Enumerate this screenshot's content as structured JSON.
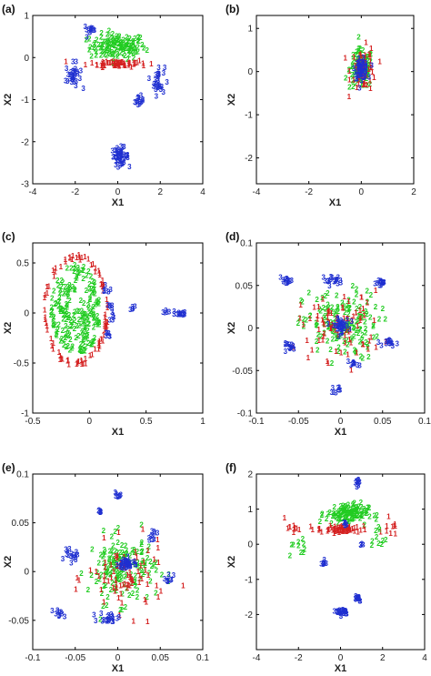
{
  "colors": {
    "1": "#d42020",
    "2": "#22cc22",
    "3": "#1f2fd0"
  },
  "chart_data": [
    {
      "type": "scatter",
      "panel_label": "(a)",
      "xlabel": "X1",
      "ylabel": "X2",
      "xlim": [
        -4,
        4
      ],
      "ylim": [
        -3,
        1
      ],
      "xticks": [
        "-4",
        "-2",
        "0",
        "2",
        "4"
      ],
      "yticks": [
        "-3",
        "-2",
        "-1",
        "0",
        "1"
      ],
      "clusters": [
        {
          "label": "2",
          "cx": 0.0,
          "cy": 0.2,
          "sx": 1.3,
          "sy": 0.3,
          "n": 130,
          "shape": "ellipse"
        },
        {
          "label": "1",
          "cx": 0.0,
          "cy": -0.2,
          "sx": 1.4,
          "sy": 0.08,
          "n": 60,
          "shape": "ellipse"
        },
        {
          "label": "3",
          "cx": -2.1,
          "cy": -0.5,
          "sx": 0.35,
          "sy": 0.3,
          "n": 30,
          "shape": "ellipse"
        },
        {
          "label": "3",
          "cx": 1.9,
          "cy": -0.6,
          "sx": 0.3,
          "sy": 0.35,
          "n": 28,
          "shape": "ellipse"
        },
        {
          "label": "3",
          "cx": 1.0,
          "cy": -1.1,
          "sx": 0.2,
          "sy": 0.12,
          "n": 14,
          "shape": "ellipse"
        },
        {
          "label": "3",
          "cx": -1.3,
          "cy": 0.6,
          "sx": 0.3,
          "sy": 0.1,
          "n": 12,
          "shape": "ellipse"
        },
        {
          "label": "3",
          "cx": 0.1,
          "cy": -2.4,
          "sx": 0.4,
          "sy": 0.2,
          "n": 45,
          "shape": "ellipse"
        }
      ]
    },
    {
      "type": "scatter",
      "panel_label": "(b)",
      "xlabel": "X1",
      "ylabel": "X2",
      "xlim": [
        -4,
        2
      ],
      "ylim": [
        -2.6,
        1.3
      ],
      "xticks": [
        "-4",
        "-2",
        "0",
        "2"
      ],
      "yticks": [
        "-2",
        "-1",
        "0",
        "1"
      ],
      "clusters": [
        {
          "label": "2",
          "cx": 0.0,
          "cy": 0.0,
          "sx": 0.45,
          "sy": 0.45,
          "n": 110,
          "shape": "ellipse"
        },
        {
          "label": "1",
          "cx": 0.1,
          "cy": 0.0,
          "sx": 0.5,
          "sy": 0.5,
          "n": 55,
          "shape": "ellipse"
        },
        {
          "label": "3",
          "cx": 0.0,
          "cy": 0.0,
          "sx": 0.25,
          "sy": 0.22,
          "n": 60,
          "shape": "ellipse"
        }
      ]
    },
    {
      "type": "scatter",
      "panel_label": "(c)",
      "xlabel": "X1",
      "ylabel": "X2",
      "xlim": [
        -0.5,
        1
      ],
      "ylim": [
        -1,
        0.7
      ],
      "xticks": [
        "-0.5",
        "0",
        "0.5",
        "1"
      ],
      "yticks": [
        "-1",
        "-0.5",
        "0",
        "0.5"
      ],
      "clusters": [
        {
          "label": "1",
          "cx": -0.12,
          "cy": 0.0,
          "sx": 0.28,
          "sy": 0.55,
          "n": 90,
          "shape": "ring"
        },
        {
          "label": "2",
          "cx": -0.12,
          "cy": 0.0,
          "sx": 0.24,
          "sy": 0.5,
          "n": 200,
          "shape": "disk"
        },
        {
          "label": "3",
          "cx": 0.8,
          "cy": -0.03,
          "sx": 0.05,
          "sy": 0.02,
          "n": 14,
          "shape": "ellipse"
        },
        {
          "label": "3",
          "cx": 0.7,
          "cy": -0.01,
          "sx": 0.04,
          "sy": 0.015,
          "n": 6,
          "shape": "ellipse"
        },
        {
          "label": "3",
          "cx": 0.38,
          "cy": 0.03,
          "sx": 0.02,
          "sy": 0.03,
          "n": 6,
          "shape": "ellipse"
        },
        {
          "label": "3",
          "cx": 0.2,
          "cy": 0.0,
          "sx": 0.03,
          "sy": 0.1,
          "n": 10,
          "shape": "ellipse"
        },
        {
          "label": "3",
          "cx": 0.15,
          "cy": 0.22,
          "sx": 0.04,
          "sy": 0.05,
          "n": 6,
          "shape": "ellipse"
        },
        {
          "label": "3",
          "cx": 0.15,
          "cy": -0.25,
          "sx": 0.04,
          "sy": 0.05,
          "n": 6,
          "shape": "ellipse"
        }
      ]
    },
    {
      "type": "scatter",
      "panel_label": "(d)",
      "xlabel": "X1",
      "ylabel": "X2",
      "xlim": [
        -0.1,
        0.1
      ],
      "ylim": [
        -0.1,
        0.1
      ],
      "xticks": [
        "-0.1",
        "-0.05",
        "0",
        "0.05",
        "0.1"
      ],
      "yticks": [
        "-0.1",
        "-0.05",
        "0",
        "0.05",
        "0.1"
      ],
      "clusters": [
        {
          "label": "2",
          "cx": 0.0,
          "cy": 0.0,
          "sx": 0.045,
          "sy": 0.04,
          "n": 150,
          "shape": "ellipse"
        },
        {
          "label": "1",
          "cx": 0.0,
          "cy": 0.0,
          "sx": 0.05,
          "sy": 0.04,
          "n": 80,
          "shape": "ellipse"
        },
        {
          "label": "3",
          "cx": 0.0,
          "cy": 0.0,
          "sx": 0.01,
          "sy": 0.008,
          "n": 40,
          "shape": "ellipse"
        },
        {
          "label": "3",
          "cx": -0.065,
          "cy": 0.052,
          "sx": 0.008,
          "sy": 0.004,
          "n": 14,
          "shape": "ellipse"
        },
        {
          "label": "3",
          "cx": -0.01,
          "cy": 0.053,
          "sx": 0.012,
          "sy": 0.005,
          "n": 18,
          "shape": "ellipse"
        },
        {
          "label": "3",
          "cx": 0.05,
          "cy": 0.05,
          "sx": 0.008,
          "sy": 0.004,
          "n": 14,
          "shape": "ellipse"
        },
        {
          "label": "3",
          "cx": -0.06,
          "cy": -0.025,
          "sx": 0.008,
          "sy": 0.004,
          "n": 14,
          "shape": "ellipse"
        },
        {
          "label": "3",
          "cx": 0.06,
          "cy": -0.02,
          "sx": 0.008,
          "sy": 0.004,
          "n": 14,
          "shape": "ellipse"
        },
        {
          "label": "3",
          "cx": 0.015,
          "cy": -0.045,
          "sx": 0.006,
          "sy": 0.004,
          "n": 10,
          "shape": "ellipse"
        },
        {
          "label": "3",
          "cx": -0.005,
          "cy": -0.075,
          "sx": 0.005,
          "sy": 0.004,
          "n": 8,
          "shape": "ellipse"
        }
      ]
    },
    {
      "type": "scatter",
      "panel_label": "(e)",
      "xlabel": "X1",
      "ylabel": "X2",
      "xlim": [
        -0.1,
        0.1
      ],
      "ylim": [
        -0.08,
        0.1
      ],
      "xticks": [
        "-0.1",
        "-0.05",
        "0",
        "0.05",
        "0.1"
      ],
      "yticks": [
        "-0.05",
        "0",
        "0.05",
        "0.1"
      ],
      "clusters": [
        {
          "label": "2",
          "cx": 0.005,
          "cy": 0.0,
          "sx": 0.04,
          "sy": 0.035,
          "n": 150,
          "shape": "ellipse"
        },
        {
          "label": "1",
          "cx": 0.01,
          "cy": -0.01,
          "sx": 0.045,
          "sy": 0.035,
          "n": 80,
          "shape": "ellipse"
        },
        {
          "label": "3",
          "cx": 0.01,
          "cy": 0.005,
          "sx": 0.01,
          "sy": 0.006,
          "n": 40,
          "shape": "ellipse"
        },
        {
          "label": "3",
          "cx": -0.055,
          "cy": 0.013,
          "sx": 0.008,
          "sy": 0.006,
          "n": 16,
          "shape": "ellipse"
        },
        {
          "label": "3",
          "cx": 0.04,
          "cy": 0.035,
          "sx": 0.006,
          "sy": 0.005,
          "n": 10,
          "shape": "ellipse"
        },
        {
          "label": "3",
          "cx": 0.0,
          "cy": 0.075,
          "sx": 0.005,
          "sy": 0.004,
          "n": 8,
          "shape": "ellipse"
        },
        {
          "label": "3",
          "cx": -0.02,
          "cy": 0.06,
          "sx": 0.004,
          "sy": 0.003,
          "n": 6,
          "shape": "ellipse"
        },
        {
          "label": "3",
          "cx": -0.01,
          "cy": -0.05,
          "sx": 0.012,
          "sy": 0.005,
          "n": 20,
          "shape": "ellipse"
        },
        {
          "label": "3",
          "cx": -0.07,
          "cy": -0.045,
          "sx": 0.008,
          "sy": 0.004,
          "n": 10,
          "shape": "ellipse"
        },
        {
          "label": "3",
          "cx": 0.06,
          "cy": -0.01,
          "sx": 0.006,
          "sy": 0.005,
          "n": 8,
          "shape": "ellipse"
        }
      ]
    },
    {
      "type": "scatter",
      "panel_label": "(f)",
      "xlabel": "X1",
      "ylabel": "X2",
      "xlim": [
        -4,
        4
      ],
      "ylim": [
        -3,
        2
      ],
      "xticks": [
        "-4",
        "-2",
        "0",
        "2",
        "4"
      ],
      "yticks": [
        "-2",
        "-1",
        "0",
        "1",
        "2"
      ],
      "clusters": [
        {
          "label": "2",
          "cx": 0.3,
          "cy": 0.8,
          "sx": 1.0,
          "sy": 0.3,
          "n": 110,
          "shape": "ellipse"
        },
        {
          "label": "1",
          "cx": 0.0,
          "cy": 0.35,
          "sx": 1.1,
          "sy": 0.1,
          "n": 60,
          "shape": "ellipse"
        },
        {
          "label": "1",
          "cx": -2.3,
          "cy": 0.4,
          "sx": 0.3,
          "sy": 0.3,
          "n": 10,
          "shape": "ellipse"
        },
        {
          "label": "1",
          "cx": 2.4,
          "cy": 0.5,
          "sx": 0.3,
          "sy": 0.3,
          "n": 10,
          "shape": "ellipse"
        },
        {
          "label": "2",
          "cx": -2.0,
          "cy": -0.2,
          "sx": 0.4,
          "sy": 0.3,
          "n": 10,
          "shape": "ellipse"
        },
        {
          "label": "2",
          "cx": 1.8,
          "cy": 0.1,
          "sx": 0.4,
          "sy": 0.4,
          "n": 10,
          "shape": "ellipse"
        },
        {
          "label": "3",
          "cx": 0.8,
          "cy": 1.7,
          "sx": 0.12,
          "sy": 0.12,
          "n": 12,
          "shape": "ellipse"
        },
        {
          "label": "3",
          "cx": -0.8,
          "cy": -0.6,
          "sx": 0.12,
          "sy": 0.08,
          "n": 8,
          "shape": "ellipse"
        },
        {
          "label": "3",
          "cx": 0.2,
          "cy": 0.5,
          "sx": 0.1,
          "sy": 0.08,
          "n": 6,
          "shape": "ellipse"
        },
        {
          "label": "3",
          "cx": 1.0,
          "cy": -0.1,
          "sx": 0.1,
          "sy": 0.1,
          "n": 4,
          "shape": "ellipse"
        },
        {
          "label": "3",
          "cx": 0.1,
          "cy": -2.0,
          "sx": 0.3,
          "sy": 0.1,
          "n": 24,
          "shape": "ellipse"
        },
        {
          "label": "3",
          "cx": 0.8,
          "cy": -1.6,
          "sx": 0.2,
          "sy": 0.1,
          "n": 14,
          "shape": "ellipse"
        }
      ]
    }
  ]
}
